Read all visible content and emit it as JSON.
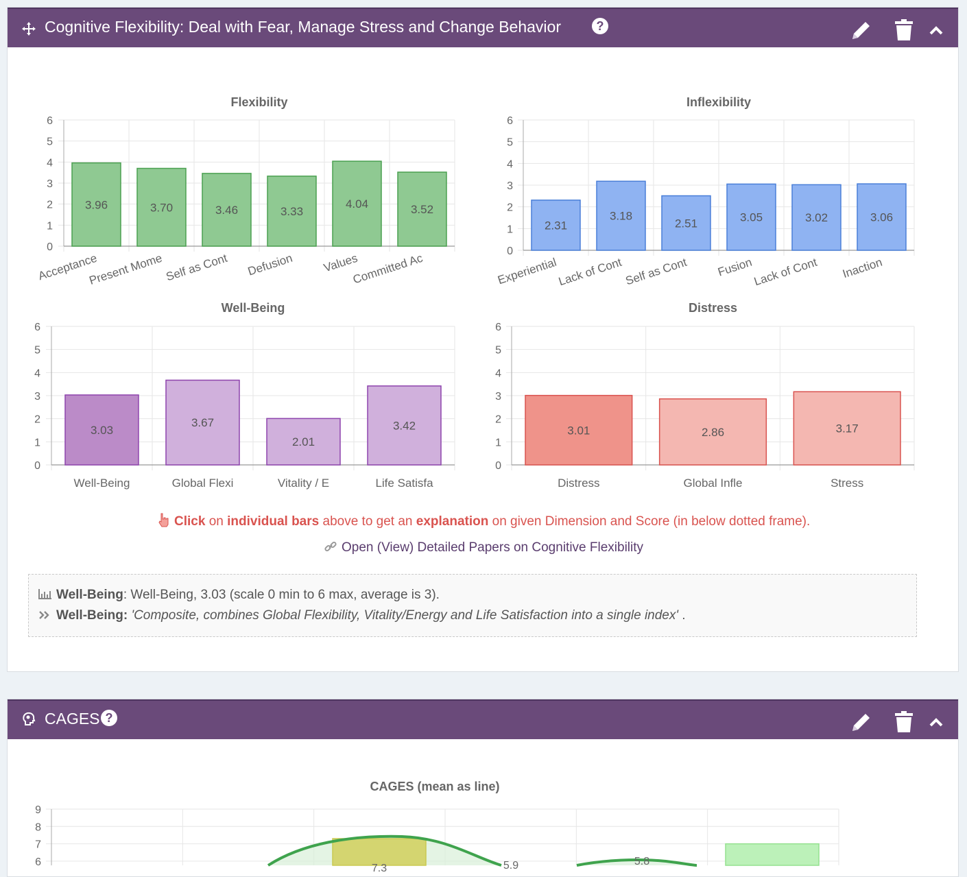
{
  "panel1": {
    "title": "Cognitive Flexibility: Deal with Fear, Manage Stress and Change Behavior",
    "help": "?",
    "icons": [
      "move-icon",
      "pencil-icon",
      "trash-icon",
      "chevron-up-icon"
    ],
    "click_hint": {
      "w1": "Click",
      "w2": " on ",
      "w3": "individual bars",
      "w4": " above to get an ",
      "w5": "explanation",
      "w6": " on given Dimension and Score (in below dotted frame)."
    },
    "papers_link": "Open (View) Detailed Papers on Cognitive Flexibility",
    "explanation": {
      "name": "Well-Being",
      "summary": ": Well-Being, 3.03 (scale 0 min to 6 max, average is 3).",
      "name2": "Well-Being:",
      "quote": "'Composite, combines Global Flexibility, Vitality/Energy and Life Satisfaction into a single index'",
      "end": " ."
    }
  },
  "panel2": {
    "title": "CAGES",
    "help": "?",
    "icons": [
      "brain-icon",
      "pencil-icon",
      "trash-icon",
      "chevron-up-icon"
    ]
  },
  "chart_data": [
    {
      "type": "bar",
      "title": "Flexibility",
      "categories": [
        "Acceptance",
        "Present Mome",
        "Self as Cont",
        "Defusion",
        "Values",
        "Committed Ac"
      ],
      "values": [
        3.96,
        3.7,
        3.46,
        3.33,
        4.04,
        3.52
      ],
      "labels": [
        "3.96",
        "3.70",
        "3.46",
        "3.33",
        "4.04",
        "3.52"
      ],
      "ylim": [
        0,
        6
      ],
      "yticks": [
        "0",
        "1",
        "2",
        "3",
        "4",
        "5",
        "6"
      ],
      "color": "#8fc992",
      "stroke": "#4aa050",
      "grid": true
    },
    {
      "type": "bar",
      "title": "Inflexibility",
      "categories": [
        "Experiential",
        "Lack of Cont",
        "Self as Cont",
        "Fusion",
        "Lack of Cont",
        "Inaction"
      ],
      "values": [
        2.31,
        3.18,
        2.51,
        3.05,
        3.02,
        3.06
      ],
      "labels": [
        "2.31",
        "3.18",
        "2.51",
        "3.05",
        "3.02",
        "3.06"
      ],
      "ylim": [
        0,
        6
      ],
      "yticks": [
        "0",
        "1",
        "2",
        "3",
        "4",
        "5",
        "6"
      ],
      "color": "#8fb3f2",
      "stroke": "#4a7fd8",
      "grid": true
    },
    {
      "type": "bar",
      "title": "Well-Being",
      "categories": [
        "Well-Being",
        "Global Flexi",
        "Vitality / E",
        "Life Satisfa"
      ],
      "values": [
        3.03,
        3.67,
        2.01,
        3.42
      ],
      "labels": [
        "3.03",
        "3.67",
        "2.01",
        "3.42"
      ],
      "ylim": [
        0,
        6
      ],
      "yticks": [
        "0",
        "1",
        "2",
        "3",
        "4",
        "5",
        "6"
      ],
      "colors": [
        "#bb8bc8",
        "#d0b0dc",
        "#d0b0dc",
        "#d0b0dc"
      ],
      "stroke": "#8e44ad",
      "grid": true
    },
    {
      "type": "bar",
      "title": "Distress",
      "categories": [
        "Distress",
        "Global Infle",
        "Stress"
      ],
      "values": [
        3.01,
        2.86,
        3.17
      ],
      "labels": [
        "3.01",
        "2.86",
        "3.17"
      ],
      "ylim": [
        0,
        6
      ],
      "yticks": [
        "0",
        "1",
        "2",
        "3",
        "4",
        "5",
        "6"
      ],
      "colors": [
        "#ef938a",
        "#f4b7b1",
        "#f4b7b1"
      ],
      "stroke": "#d9534f",
      "grid": true
    },
    {
      "type": "bar",
      "title": "CAGES (mean as line)",
      "yticks": [
        "6",
        "7",
        "8",
        "9"
      ],
      "ylim_visible": [
        6,
        9
      ],
      "bar_values": [
        7.3,
        7
      ],
      "bar_labels": [
        "7.3",
        ""
      ],
      "line_labels": [
        "5.9",
        "5.8"
      ],
      "colors": [
        "#d4d46a",
        "#b9f1b6"
      ],
      "line_color": "#3fa34d"
    }
  ]
}
